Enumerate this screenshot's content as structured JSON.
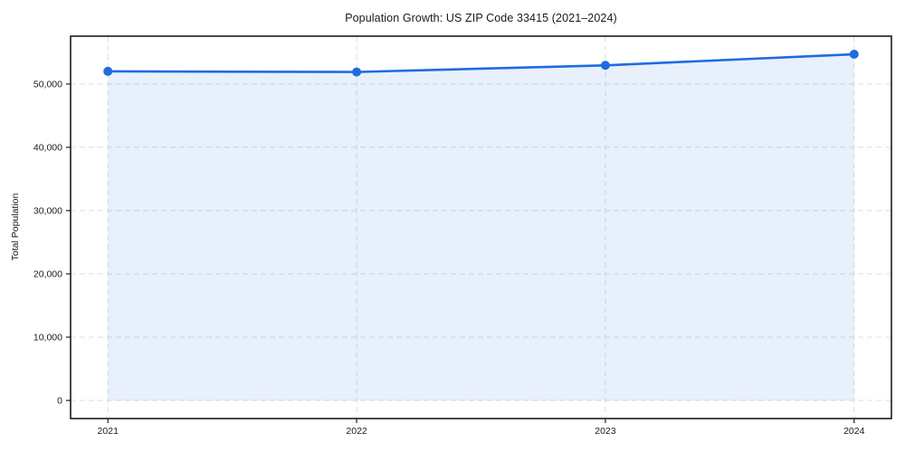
{
  "chart_data": {
    "type": "line",
    "title": "Population Growth: US ZIP Code 33415 (2021–2024)",
    "xlabel": "",
    "ylabel": "Total Population",
    "x": [
      2021,
      2022,
      2023,
      2024
    ],
    "xtick_labels": [
      "2021",
      "2022",
      "2023",
      "2024"
    ],
    "series": [
      {
        "name": "Total Population",
        "values": [
          52000,
          51900,
          52950,
          54700
        ]
      }
    ],
    "yticks": [
      0,
      10000,
      20000,
      30000,
      40000,
      50000
    ],
    "ytick_labels": [
      "0",
      "10,000",
      "20,000",
      "30,000",
      "40,000",
      "50,000"
    ],
    "xlim": [
      2020.85,
      2024.15
    ],
    "ylim": [
      -2860,
      57560
    ],
    "grid": true,
    "grid_style": "dashed",
    "area_fill": true,
    "legend_position": "none",
    "colors": {
      "line": "#1f6be0",
      "marker": "#1f6be0",
      "area_fill": "#1f6be0",
      "area_fill_opacity": 0.1,
      "grid": "#dddddd",
      "spine": "#1c1c1c",
      "text": "#1a1a1a"
    }
  }
}
